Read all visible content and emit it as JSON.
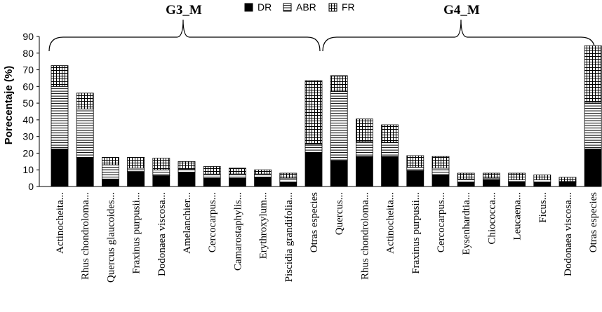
{
  "chart_data": {
    "type": "bar",
    "stacked": true,
    "ylabel": "Porecentaje (%)",
    "ylim": [
      0,
      90
    ],
    "yticks": [
      0,
      10,
      20,
      30,
      40,
      50,
      60,
      70,
      80,
      90
    ],
    "legend": {
      "placement": "top-center",
      "entries": [
        {
          "name": "DR",
          "pattern": "solid"
        },
        {
          "name": "ABR",
          "pattern": "horizontal-lines"
        },
        {
          "name": "FR",
          "pattern": "grid"
        }
      ]
    },
    "groups": [
      {
        "label": "G3_M",
        "categories": [
          "Actinocheita...",
          "Rhus chondroloma...",
          "Quercus glaucoides...",
          "Fraxinus purpusii...",
          "Dodonaea viscosa...",
          "Amelanchier...",
          "Cercocarpus...",
          "Camarostaphylis...",
          "Erythroxylum...",
          "Piscidia grandifolia...",
          "Otras especies"
        ],
        "series": [
          {
            "name": "DR",
            "values": [
              22.5,
              17.5,
              4.5,
              9,
              6.5,
              8.5,
              5,
              5,
              5.5,
              2.5,
              20.5
            ]
          },
          {
            "name": "ABR",
            "values": [
              37.5,
              29,
              8.5,
              2,
              3.5,
              2,
              2.5,
              2.5,
              2,
              2.5,
              5
            ]
          },
          {
            "name": "FR",
            "values": [
              12.5,
              9.5,
              4.5,
              6.5,
              7,
              4.5,
              4.5,
              3.5,
              2.5,
              3,
              38
            ]
          }
        ]
      },
      {
        "label": "G4_M",
        "categories": [
          "Quercus...",
          "Rhus chondroloma...",
          "Actinocheita...",
          "Fraxinus purpusii...",
          "Cercocarpus...",
          "Eysenhardtia...",
          "Chiococca...",
          "Leucaena...",
          "Ficus...",
          "Dodonaea viscosa...",
          "Otras especies"
        ],
        "series": [
          {
            "name": "DR",
            "values": [
              15.5,
              18,
              18,
              9.5,
              7,
              2.5,
              4,
              3,
              2.5,
              2.5,
              22.5
            ]
          },
          {
            "name": "ABR",
            "values": [
              41.5,
              9,
              8.5,
              2,
              4,
              2,
              1,
              1,
              1.5,
              0.5,
              28
            ]
          },
          {
            "name": "FR",
            "values": [
              9.5,
              13.5,
              10.5,
              7,
              7,
              3.5,
              3,
              4,
              3,
              2.5,
              34
            ]
          }
        ]
      }
    ]
  }
}
